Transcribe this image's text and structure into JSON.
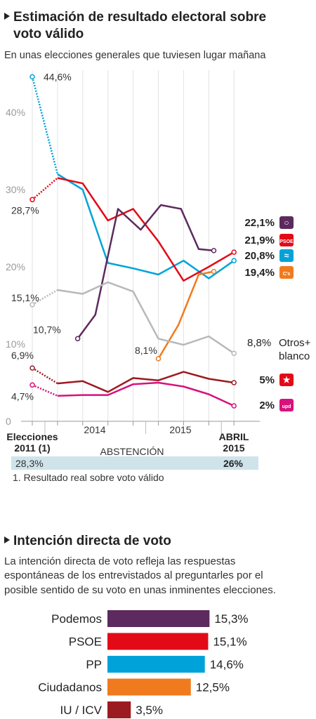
{
  "section1": {
    "title_line1": "Estimación de resultado electoral sobre",
    "title_line2": "voto válido",
    "subtitle": "En unas elecciones generales que tuviesen lugar mañana"
  },
  "x_labels": {
    "start_line1": "Elecciones",
    "start_line2": "2011 (1)",
    "y2014": "2014",
    "y2015": "2015",
    "end_line1": "ABRIL",
    "end_line2": "2015"
  },
  "abstention": {
    "label": "ABSTENCIÓN",
    "start": "28,3%",
    "end": "26%"
  },
  "footnote": "1. Resultado real sobre voto válido",
  "section2": {
    "title": "Intención directa de voto",
    "text_line1": "La intención directa de voto refleja las respuestas",
    "text_line2": "espontáneas de los entrevistados al preguntarles por el",
    "text_line3": "posible sentido de su voto en unas inminentes elecciones."
  },
  "chart_data": [
    {
      "type": "line",
      "ylim": [
        0,
        47
      ],
      "yticks": [
        "0",
        "10%",
        "20%",
        "30%",
        "40%"
      ],
      "ytick_values": [
        0,
        10,
        20,
        30,
        40
      ],
      "series": [
        {
          "name": "PP",
          "color": "#00a3d9",
          "points": [
            [
              0,
              44.6
            ],
            [
              1,
              32
            ],
            [
              2,
              30
            ],
            [
              3,
              20.5
            ],
            [
              4,
              19.8
            ],
            [
              5,
              19
            ],
            [
              6,
              20.8
            ],
            [
              7,
              18.5
            ],
            [
              8,
              20.8
            ]
          ],
          "dotted_segments": 1,
          "start_label": "44,6%",
          "end_label": "20,8%",
          "icon_glyph": "≈",
          "icon_color": "#00a3d9"
        },
        {
          "name": "PSOE",
          "color": "#e30a17",
          "points": [
            [
              0,
              28.7
            ],
            [
              1,
              31.5
            ],
            [
              2,
              30.8
            ],
            [
              3,
              26
            ],
            [
              4,
              27.5
            ],
            [
              5,
              23.3
            ],
            [
              6,
              18.2
            ],
            [
              7,
              20
            ],
            [
              8,
              21.9
            ]
          ],
          "dotted_segments": 1,
          "start_label": "28,7%",
          "end_label": "21,9%",
          "icon_glyph": "PSOE",
          "icon_color": "#e30a17"
        },
        {
          "name": "Podemos",
          "color": "#5c2a5e",
          "points": [
            [
              1.8,
              10.7
            ],
            [
              2.5,
              13.8
            ],
            [
              3.4,
              27.5
            ],
            [
              4.3,
              24.8
            ],
            [
              5.1,
              28
            ],
            [
              5.9,
              27.5
            ],
            [
              6.6,
              22.3
            ],
            [
              7.2,
              22.1
            ]
          ],
          "dotted_segments": 0,
          "start_label": "10,7%",
          "end_label": "22,1%",
          "icon_glyph": "○",
          "icon_color": "#5c2a5e"
        },
        {
          "name": "Ciudadanos",
          "color": "#f07b1e",
          "points": [
            [
              5,
              8.1
            ],
            [
              5.8,
              12.5
            ],
            [
              6.6,
              19
            ],
            [
              7.2,
              19.4
            ]
          ],
          "dotted_segments": 0,
          "start_label": "8,1%",
          "end_label": "19,4%",
          "icon_glyph": "C's",
          "icon_color": "#f07b1e"
        },
        {
          "name": "Otros+ blanco",
          "color": "#b8b8b8",
          "points": [
            [
              0,
              15.1
            ],
            [
              1,
              17
            ],
            [
              2,
              16.5
            ],
            [
              3,
              18
            ],
            [
              4,
              16.8
            ],
            [
              5,
              10.7
            ],
            [
              6,
              9.9
            ],
            [
              7,
              11
            ],
            [
              8,
              8.8
            ]
          ],
          "dotted_segments": 1,
          "start_label": "15,1%",
          "end_label": "8,8%",
          "end_text_line1": "Otros+",
          "end_text_line2": "blanco"
        },
        {
          "name": "IU",
          "color": "#9b1b21",
          "points": [
            [
              0,
              6.9
            ],
            [
              1,
              4.9
            ],
            [
              2,
              5.2
            ],
            [
              3,
              3.8
            ],
            [
              4,
              5.6
            ],
            [
              5,
              5.3
            ],
            [
              6,
              6.4
            ],
            [
              7,
              5.5
            ],
            [
              8,
              5
            ]
          ],
          "dotted_segments": 1,
          "start_label": "6,9%",
          "end_label": "5%",
          "icon_glyph": "★",
          "icon_color": "#e30a17"
        },
        {
          "name": "UPyD",
          "color": "#d8117d",
          "points": [
            [
              0,
              4.7
            ],
            [
              1,
              3.3
            ],
            [
              2,
              3.4
            ],
            [
              3,
              3.4
            ],
            [
              4,
              4.8
            ],
            [
              5,
              5
            ],
            [
              6,
              4.5
            ],
            [
              7,
              3.5
            ],
            [
              8,
              2
            ]
          ],
          "dotted_segments": 1,
          "start_label": "4,7%",
          "end_label": "2%",
          "icon_glyph": "upd",
          "icon_color": "#d8117d"
        }
      ]
    },
    {
      "type": "bar",
      "categories": [
        "Podemos",
        "PSOE",
        "PP",
        "Ciudadanos",
        "IU / ICV"
      ],
      "values": [
        15.3,
        15.1,
        14.6,
        12.5,
        3.5
      ],
      "labels": [
        "15,3%",
        "15,1%",
        "14,6%",
        "12,5%",
        "3,5%"
      ],
      "colors": [
        "#5c2a5e",
        "#e30a17",
        "#00a3d9",
        "#f07b1e",
        "#9b1b21"
      ]
    }
  ]
}
